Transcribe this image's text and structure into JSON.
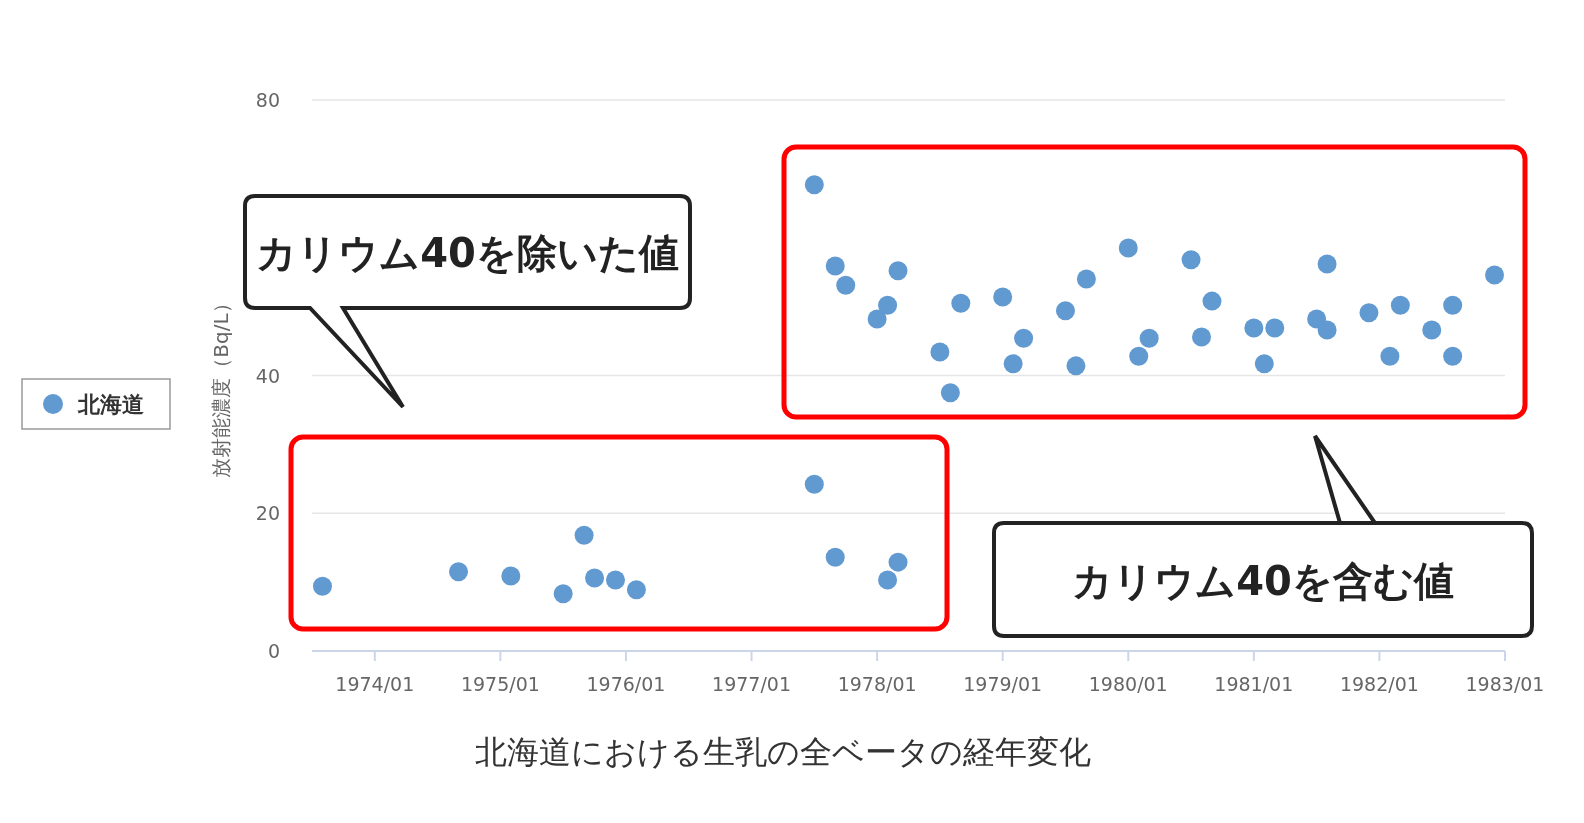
{
  "chart_data": {
    "type": "scatter",
    "title": "北海道における生乳の全ベータの経年変化",
    "ylabel": "放射能濃度（Bq/L）",
    "annotations": [
      "カリウム40を除いた値",
      "カリウム40を含む値"
    ],
    "x": [
      "1973-08",
      "1974-09",
      "1975-02",
      "1975-07",
      "1975-09",
      "1975-10",
      "1975-12",
      "1976-02",
      "1977-07",
      "1977-09",
      "1978-02",
      "1978-03",
      "1977-07",
      "1977-09",
      "1977-10",
      "1978-01",
      "1978-02",
      "1978-03",
      "1978-07",
      "1978-08",
      "1978-09",
      "1979-01",
      "1979-02",
      "1979-03",
      "1979-07",
      "1979-08",
      "1979-09",
      "1980-01",
      "1980-02",
      "1980-03",
      "1980-07",
      "1980-08",
      "1980-09",
      "1981-01",
      "1981-02",
      "1981-03",
      "1981-07",
      "1981-08",
      "1981-08",
      "1981-12",
      "1982-02",
      "1982-03",
      "1982-06",
      "1982-08",
      "1982-08",
      "1982-12"
    ],
    "series": [
      {
        "name": "北海道",
        "color": "#6199d1",
        "values": [
          9.4,
          11.5,
          10.9,
          8.3,
          16.8,
          10.6,
          10.3,
          8.9,
          24.2,
          13.6,
          10.3,
          12.9,
          67.7,
          55.9,
          53.1,
          48.2,
          50.2,
          55.2,
          43.4,
          37.5,
          50.5,
          51.4,
          41.7,
          45.4,
          49.4,
          41.4,
          54.0,
          58.5,
          42.8,
          45.4,
          56.8,
          45.6,
          50.8,
          46.9,
          41.7,
          46.9,
          48.2,
          56.2,
          46.6,
          49.1,
          42.8,
          50.2,
          46.6,
          42.8,
          50.2,
          54.6
        ]
      }
    ],
    "xlim": [
      "1973-07",
      "1983-01"
    ],
    "ylim": [
      0,
      80
    ],
    "yticks": [
      0,
      20,
      40,
      80
    ],
    "xticks": [
      {
        "value": "1974-01",
        "label": "1974/01"
      },
      {
        "value": "1975-01",
        "label": "1975/01"
      },
      {
        "value": "1976-01",
        "label": "1976/01"
      },
      {
        "value": "1977-01",
        "label": "1977/01"
      },
      {
        "value": "1978-01",
        "label": "1978/01"
      },
      {
        "value": "1979-01",
        "label": "1979/01"
      },
      {
        "value": "1980-01",
        "label": "1980/01"
      },
      {
        "value": "1981-01",
        "label": "1981/01"
      },
      {
        "value": "1982-01",
        "label": "1982/01"
      },
      {
        "value": "1983-01",
        "label": "1983/01"
      }
    ],
    "grid": "y",
    "legend": "left",
    "marker": "circle"
  }
}
